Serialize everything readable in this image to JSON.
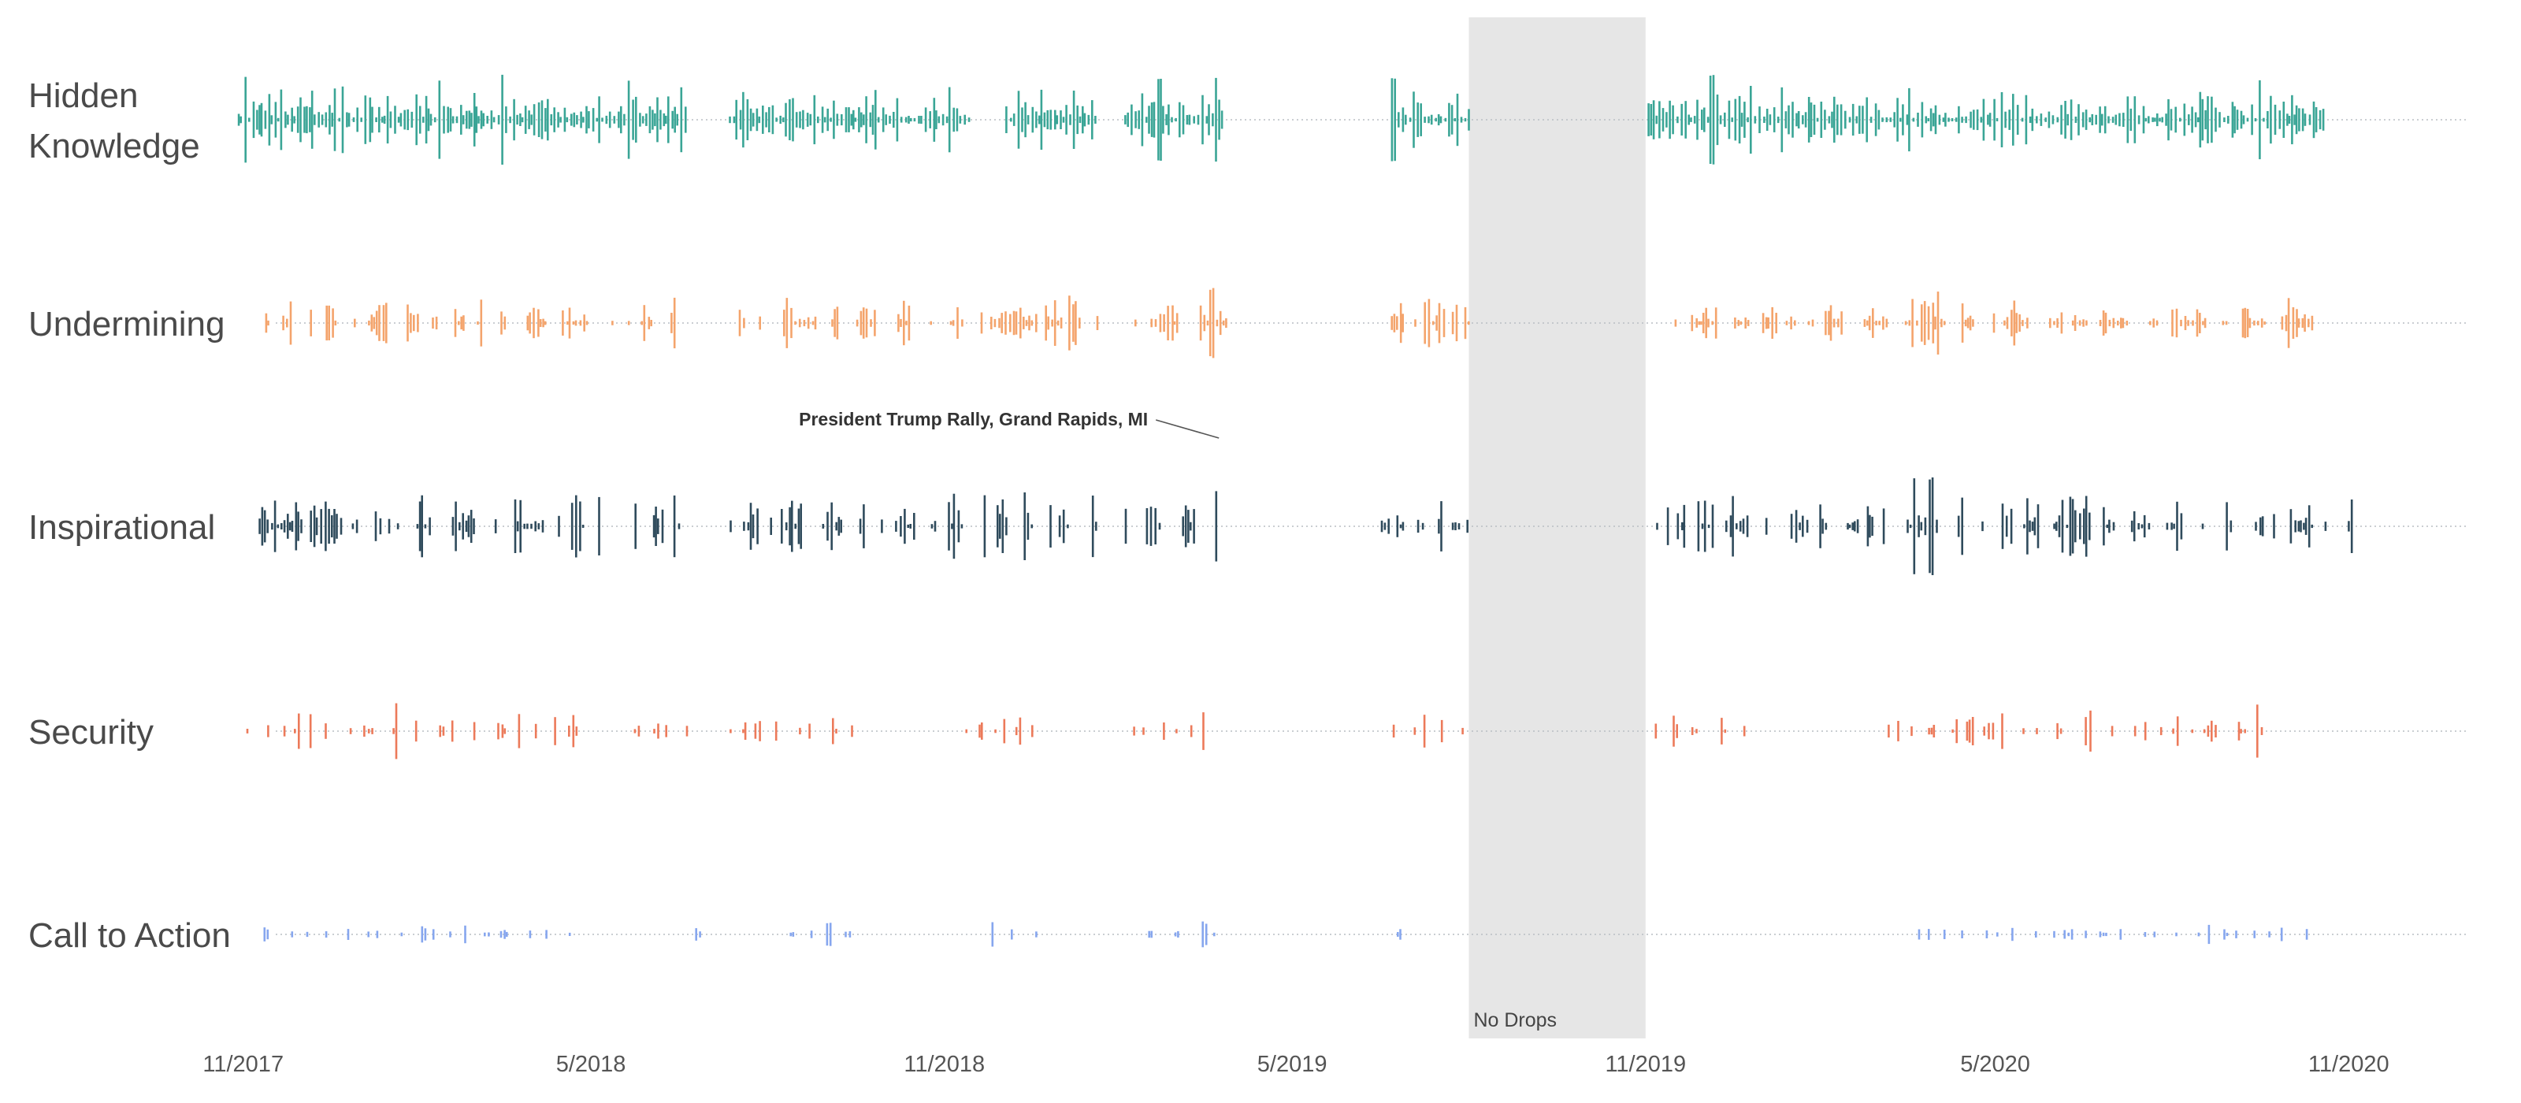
{
  "chart_data": {
    "type": "strip",
    "x_axis": {
      "range": [
        "2017-09",
        "2021-01"
      ],
      "ticks": [
        "11/2017",
        "5/2018",
        "11/2018",
        "5/2019",
        "11/2019",
        "5/2020",
        "11/2020"
      ]
    },
    "shaded_region": {
      "start": "2019-08",
      "end": "2019-11",
      "label": "No Drops",
      "color": "#e6e6e6"
    },
    "annotation": {
      "text": "President Trump Rally, Grand Rapids, MI",
      "date": "2019-03-28",
      "series": "Inspirational"
    },
    "grid": false,
    "baseline_style": "dotted",
    "series": [
      {
        "name": "Hidden Knowledge",
        "label_lines": [
          "Hidden",
          "Knowledge"
        ],
        "color": "#3aa596",
        "active_periods": [
          [
            "2017-10-28",
            "2018-06-20"
          ],
          [
            "2018-07-10",
            "2018-11-15"
          ],
          [
            "2018-12-01",
            "2019-01-20"
          ],
          [
            "2019-02-01",
            "2019-03-25"
          ],
          [
            "2019-06-20",
            "2019-08-01"
          ],
          [
            "2019-11-01",
            "2020-10-20"
          ]
        ],
        "peak_dates": [
          "2017-11-02",
          "2018-02-10",
          "2018-03-15",
          "2018-05-20",
          "2019-02-20",
          "2019-03-22",
          "2019-06-22",
          "2019-12-05",
          "2020-09-15"
        ],
        "max_height": 1.0,
        "density": 1.0
      },
      {
        "name": "Undermining",
        "label_lines": [
          "Undermining"
        ],
        "color": "#f4a46c",
        "active_periods": [
          [
            "2017-11-01",
            "2018-05-01"
          ],
          [
            "2018-05-10",
            "2018-06-20"
          ],
          [
            "2018-07-15",
            "2018-11-10"
          ],
          [
            "2018-11-15",
            "2019-01-20"
          ],
          [
            "2019-02-01",
            "2019-03-28"
          ],
          [
            "2019-06-20",
            "2019-08-01"
          ],
          [
            "2019-11-15",
            "2020-10-15"
          ]
        ],
        "peak_dates": [
          "2018-09-01",
          "2019-03-20",
          "2020-04-01",
          "2020-09-20"
        ],
        "max_height": 0.85,
        "density": 0.75
      },
      {
        "name": "Inspirational",
        "label_lines": [
          "Inspirational"
        ],
        "color": "#2f4b5c",
        "active_periods": [
          [
            "2017-11-01",
            "2018-05-05"
          ],
          [
            "2018-05-15",
            "2018-06-20"
          ],
          [
            "2018-07-10",
            "2018-11-10"
          ],
          [
            "2018-11-20",
            "2019-01-20"
          ],
          [
            "2019-02-01",
            "2019-03-30"
          ],
          [
            "2019-06-15",
            "2019-08-01"
          ],
          [
            "2019-11-01",
            "2020-11-05"
          ]
        ],
        "peak_dates": [
          "2019-03-28",
          "2020-03-20",
          "2020-03-28",
          "2020-04-03",
          "2020-04-10"
        ],
        "max_height": 1.0,
        "density": 0.75
      },
      {
        "name": "Security",
        "label_lines": [
          "Security"
        ],
        "color": "#ec7a5a",
        "active_periods": [
          [
            "2017-11-01",
            "2018-05-05"
          ],
          [
            "2018-05-15",
            "2018-06-20"
          ],
          [
            "2018-07-10",
            "2018-09-20"
          ],
          [
            "2018-11-10",
            "2018-12-20"
          ],
          [
            "2019-02-05",
            "2019-03-25"
          ],
          [
            "2019-06-20",
            "2019-08-01"
          ],
          [
            "2019-11-01",
            "2019-12-25"
          ],
          [
            "2020-03-01",
            "2020-09-20"
          ]
        ],
        "peak_dates": [
          "2017-12-18",
          "2017-12-28",
          "2018-01-20",
          "2018-09-01",
          "2019-03-05",
          "2020-09-15"
        ],
        "max_height": 0.65,
        "density": 0.4
      },
      {
        "name": "Call to Action",
        "label_lines": [
          "Call to Action"
        ],
        "color": "#86a6ee",
        "active_periods": [
          [
            "2017-11-01",
            "2018-05-01"
          ],
          [
            "2018-06-15",
            "2018-07-01"
          ],
          [
            "2018-08-10",
            "2018-09-20"
          ],
          [
            "2018-11-20",
            "2018-12-20"
          ],
          [
            "2019-02-05",
            "2019-03-25"
          ],
          [
            "2019-06-20",
            "2019-06-30"
          ],
          [
            "2020-03-10",
            "2020-10-20"
          ]
        ],
        "peak_dates": [
          "2018-09-01",
          "2018-11-25",
          "2019-03-15"
        ],
        "max_height": 0.3,
        "density": 0.3
      }
    ]
  }
}
